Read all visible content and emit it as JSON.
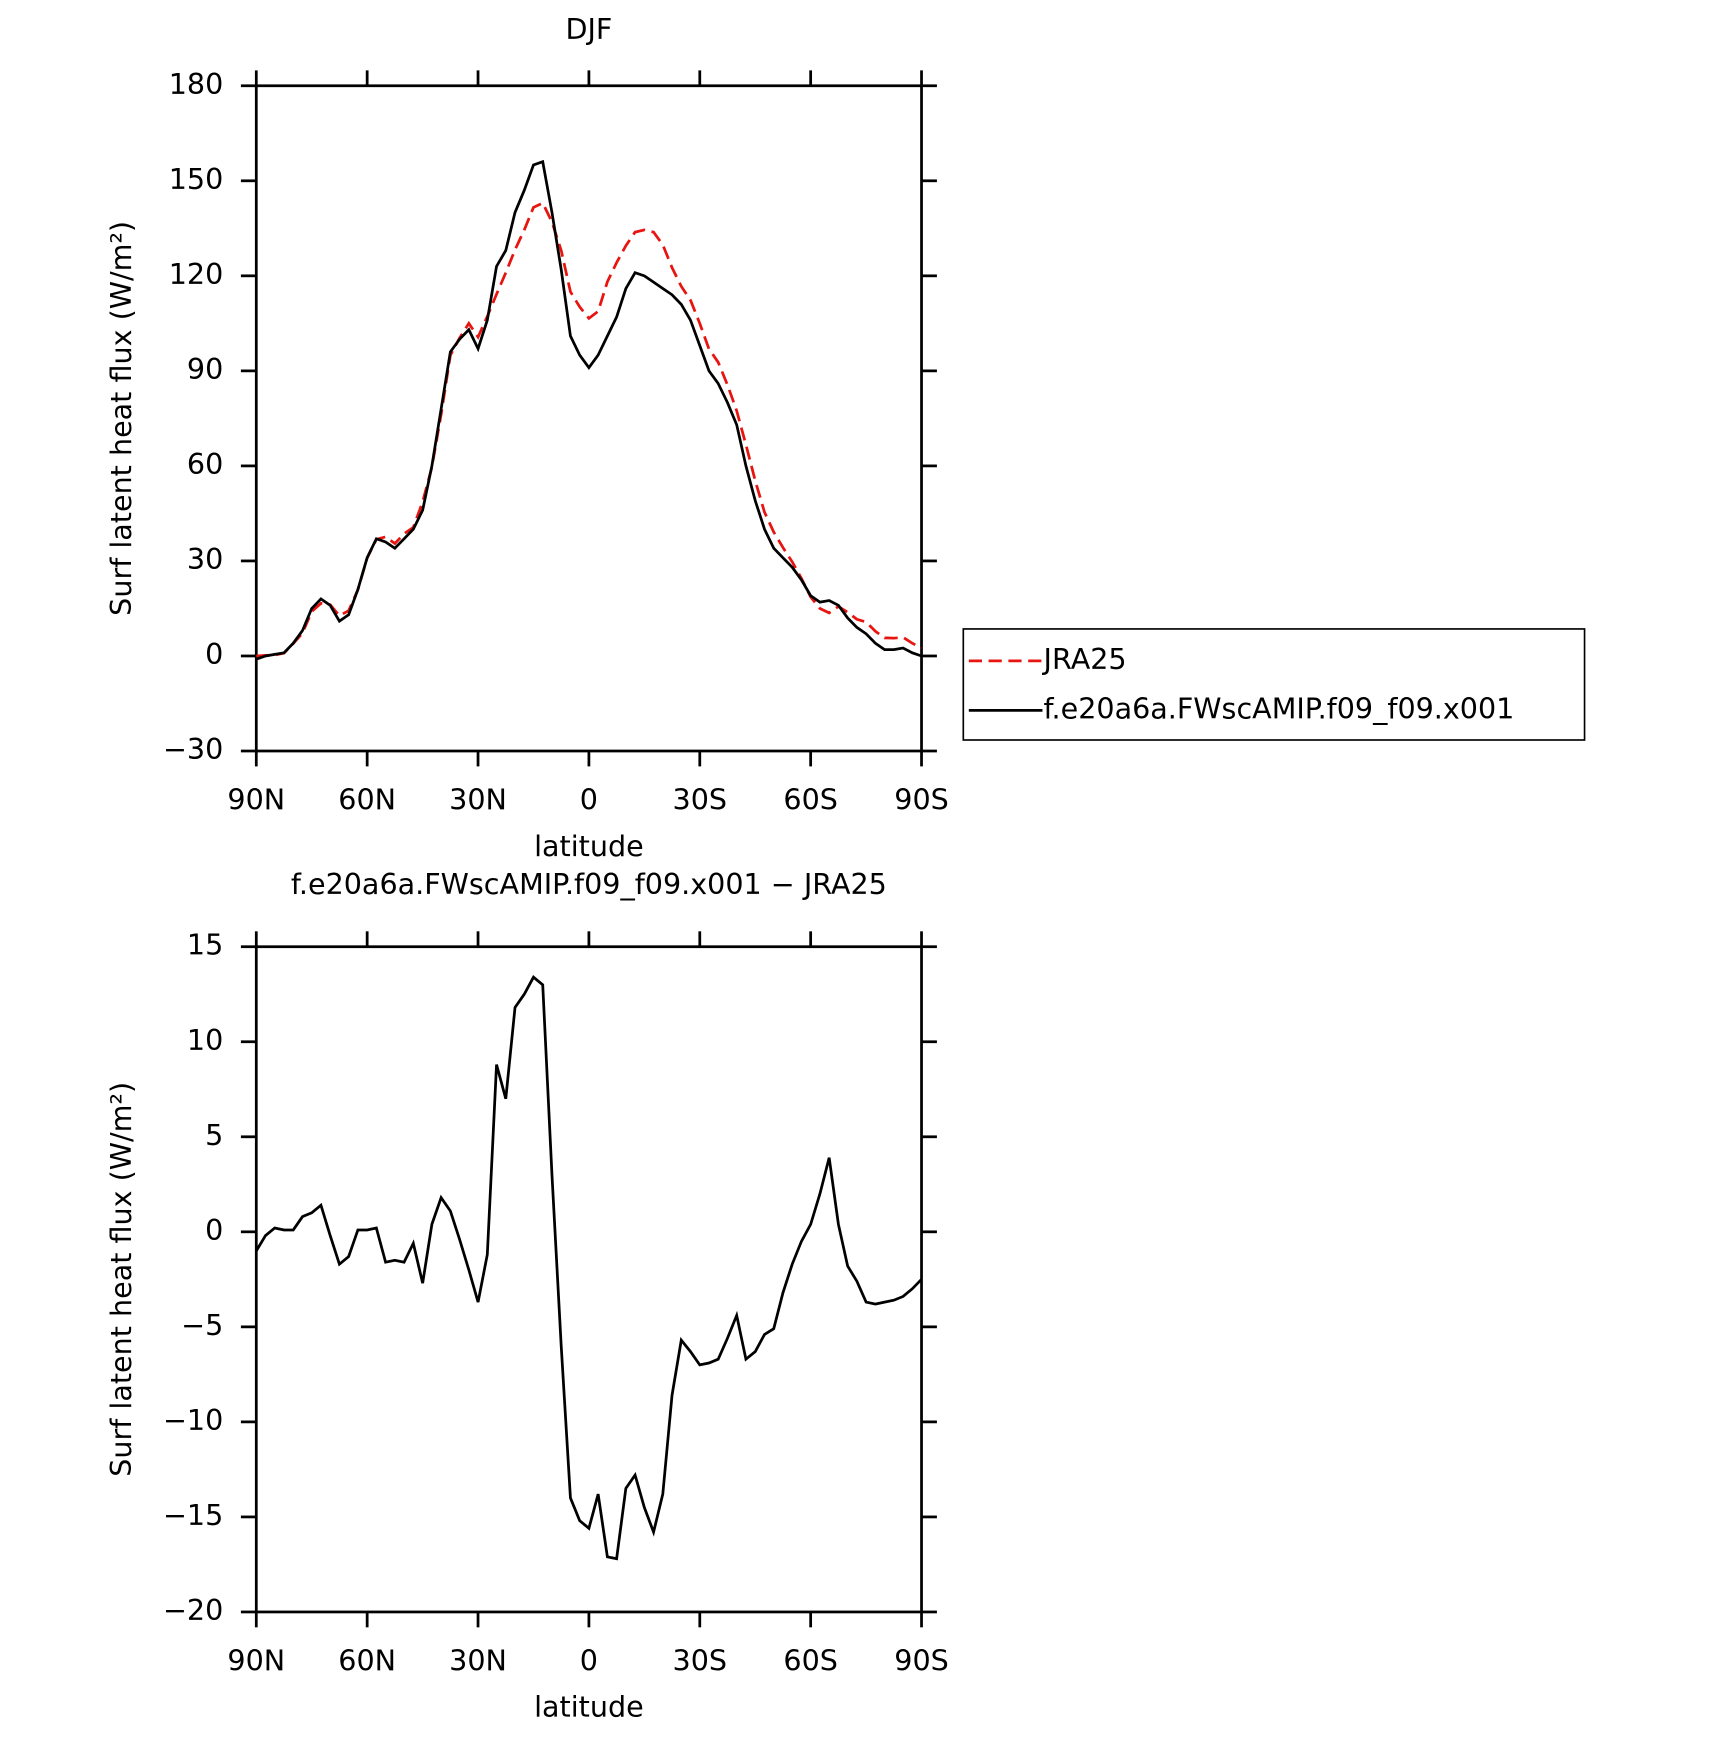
{
  "chart_data": [
    {
      "type": "line",
      "title": "DJF",
      "xlabel": "latitude",
      "ylabel": "Surf latent heat flux (W/m²)",
      "x": [
        90,
        87.5,
        85,
        82.5,
        80,
        77.5,
        75,
        72.5,
        70,
        67.5,
        65,
        62.5,
        60,
        57.5,
        55,
        52.5,
        50,
        47.5,
        45,
        42.5,
        40,
        37.5,
        35,
        32.5,
        30,
        27.5,
        25,
        22.5,
        20,
        17.5,
        15,
        12.5,
        10,
        7.5,
        5,
        2.5,
        0,
        -2.5,
        -5,
        -7.5,
        -10,
        -12.5,
        -15,
        -17.5,
        -20,
        -22.5,
        -25,
        -27.5,
        -30,
        -32.5,
        -35,
        -37.5,
        -40,
        -42.5,
        -45,
        -47.5,
        -50,
        -52.5,
        -55,
        -57.5,
        -60,
        -62.5,
        -65,
        -67.5,
        -70,
        -72.5,
        -75,
        -77.5,
        -80,
        -82.5,
        -85,
        -87.5,
        -90
      ],
      "series": [
        {
          "name": "JRA25",
          "color": "#e8140f",
          "line_style": "dashed",
          "values": [
            0,
            0.2,
            0.3,
            0.9,
            3.9,
            7.2,
            14,
            16.6,
            16.2,
            12.7,
            14.3,
            20.9,
            30.9,
            36.8,
            37.6,
            35.5,
            38.6,
            40.6,
            48.7,
            59.6,
            76.2,
            94.9,
            100.4,
            105,
            100.7,
            107.2,
            114.2,
            121,
            128.2,
            134.5,
            141.6,
            143,
            137,
            128,
            115,
            110.2,
            106.6,
            108.8,
            118.1,
            124.2,
            129.5,
            133.8,
            134.5,
            133.8,
            129.8,
            122.6,
            116.7,
            112.3,
            105,
            96.9,
            92.7,
            85.6,
            77.4,
            66.7,
            55.3,
            45.4,
            39.1,
            34.2,
            29.7,
            24.5,
            18.6,
            15,
            13.6,
            15.6,
            13.8,
            11.6,
            10.7,
            7.8,
            5.7,
            5.6,
            5.9,
            4,
            2.5
          ]
        },
        {
          "name": "f.e20a6a.FWscAMIP.f09_f09.x001",
          "color": "#000000",
          "line_style": "solid",
          "values": [
            -1,
            0,
            0.5,
            1,
            4,
            8,
            15,
            18,
            16,
            11,
            13,
            21,
            31,
            37,
            36,
            34,
            37,
            40,
            46,
            60,
            78,
            96,
            100,
            103,
            97,
            106,
            123,
            128,
            140,
            147,
            155,
            156,
            140,
            122,
            101,
            95,
            91,
            95,
            101,
            107,
            116,
            121,
            120,
            118,
            116,
            114,
            111,
            106,
            98,
            90,
            86,
            80,
            73,
            60,
            49,
            40,
            34,
            31,
            28,
            24,
            19,
            17,
            17.5,
            16,
            12,
            9,
            7,
            4,
            2,
            2,
            2.5,
            1,
            0
          ]
        }
      ],
      "xlim": [
        90,
        -90
      ],
      "xticks": [
        {
          "value": 90,
          "label": "90N"
        },
        {
          "value": 60,
          "label": "60N"
        },
        {
          "value": 30,
          "label": "30N"
        },
        0,
        {
          "value": -30,
          "label": "30S"
        },
        {
          "value": -60,
          "label": "60S"
        },
        {
          "value": -90,
          "label": "90S"
        }
      ],
      "ylim": [
        -30,
        180
      ],
      "yticks": [
        {
          "value": -30,
          "label": "−30"
        },
        0,
        30,
        60,
        90,
        120,
        150,
        180
      ],
      "legend": "right"
    },
    {
      "type": "line",
      "title": "f.e20a6a.FWscAMIP.f09_f09.x001 − JRA25",
      "xlabel": "latitude",
      "ylabel": "Surf latent heat flux (W/m²)",
      "x": [
        90,
        87.5,
        85,
        82.5,
        80,
        77.5,
        75,
        72.5,
        70,
        67.5,
        65,
        62.5,
        60,
        57.5,
        55,
        52.5,
        50,
        47.5,
        45,
        42.5,
        40,
        37.5,
        35,
        32.5,
        30,
        27.5,
        25,
        22.5,
        20,
        17.5,
        15,
        12.5,
        10,
        7.5,
        5,
        2.5,
        0,
        -2.5,
        -5,
        -7.5,
        -10,
        -12.5,
        -15,
        -17.5,
        -20,
        -22.5,
        -25,
        -27.5,
        -30,
        -32.5,
        -35,
        -37.5,
        -40,
        -42.5,
        -45,
        -47.5,
        -50,
        -52.5,
        -55,
        -57.5,
        -60,
        -62.5,
        -65,
        -67.5,
        -70,
        -72.5,
        -75,
        -77.5,
        -80,
        -82.5,
        -85,
        -87.5,
        -90
      ],
      "series": [
        {
          "color": "#000000",
          "line_style": "solid",
          "values": [
            -1,
            -0.2,
            0.2,
            0.1,
            0.1,
            0.8,
            1,
            1.4,
            -0.2,
            -1.7,
            -1.3,
            0.1,
            0.1,
            0.2,
            -1.6,
            -1.5,
            -1.6,
            -0.6,
            -2.7,
            0.4,
            1.8,
            1.1,
            -0.4,
            -2,
            -3.7,
            -1.2,
            8.8,
            7,
            11.8,
            12.5,
            13.4,
            13,
            3,
            -6,
            -14,
            -15.2,
            -15.6,
            -13.8,
            -17.1,
            -17.2,
            -13.5,
            -12.8,
            -14.5,
            -15.8,
            -13.8,
            -8.6,
            -5.7,
            -6.3,
            -7,
            -6.9,
            -6.7,
            -5.6,
            -4.4,
            -6.7,
            -6.3,
            -5.4,
            -5.1,
            -3.2,
            -1.7,
            -0.5,
            0.4,
            2,
            3.9,
            0.4,
            -1.8,
            -2.6,
            -3.7,
            -3.8,
            -3.7,
            -3.6,
            -3.4,
            -3,
            -2.5
          ]
        }
      ],
      "xlim": [
        90,
        -90
      ],
      "xticks": [
        {
          "value": 90,
          "label": "90N"
        },
        {
          "value": 60,
          "label": "60N"
        },
        {
          "value": 30,
          "label": "30N"
        },
        0,
        {
          "value": -30,
          "label": "30S"
        },
        {
          "value": -60,
          "label": "60S"
        },
        {
          "value": -90,
          "label": "90S"
        }
      ],
      "ylim": [
        -20,
        15
      ],
      "yticks": [
        {
          "value": -20,
          "label": "−20"
        },
        {
          "value": -15,
          "label": "−15"
        },
        {
          "value": -10,
          "label": "−10"
        },
        {
          "value": -5,
          "label": "−5"
        },
        0,
        5,
        10,
        15
      ]
    }
  ]
}
